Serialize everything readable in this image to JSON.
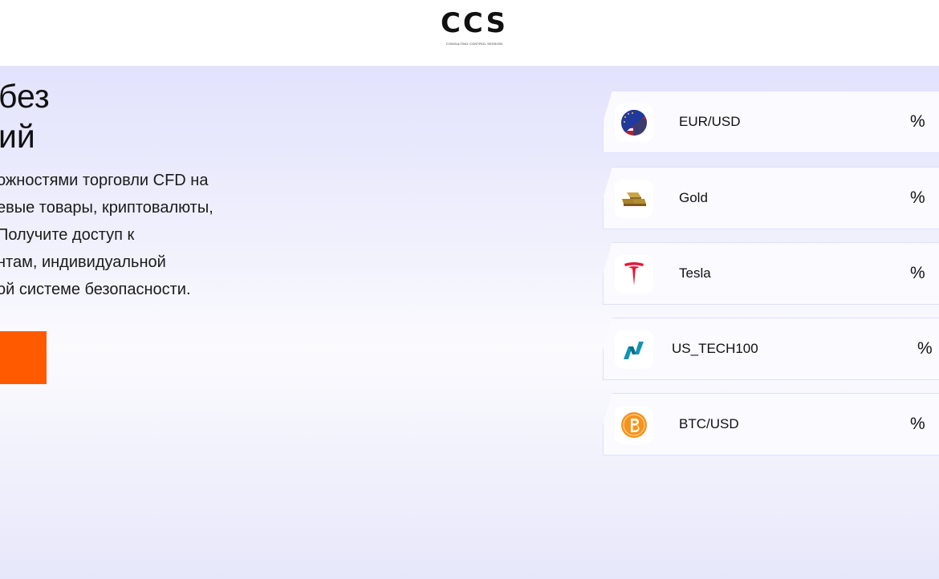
{
  "header": {
    "logo_text": "CCS",
    "logo_subtitle": "CONSULTING CONTROL SESSION"
  },
  "hero": {
    "title_lines": [
      "без",
      "ий"
    ],
    "description_lines": [
      "ожностями торговли CFD на",
      "евые товары, криптовалюты,",
      "Получите доступ к",
      "нтам, индивидуальной",
      "ой системе безопасности."
    ],
    "cta_color": "#ff5a00"
  },
  "instruments": [
    {
      "name": "EUR/USD",
      "percent": "%",
      "icon": "eur-usd-flag-icon"
    },
    {
      "name": "Gold",
      "percent": "%",
      "icon": "gold-bars-icon"
    },
    {
      "name": "Tesla",
      "percent": "%",
      "icon": "tesla-logo-icon"
    },
    {
      "name": "US_TECH100",
      "percent": "%",
      "icon": "nasdaq-logo-icon"
    },
    {
      "name": "BTC/USD",
      "percent": "%",
      "icon": "bitcoin-icon"
    }
  ]
}
